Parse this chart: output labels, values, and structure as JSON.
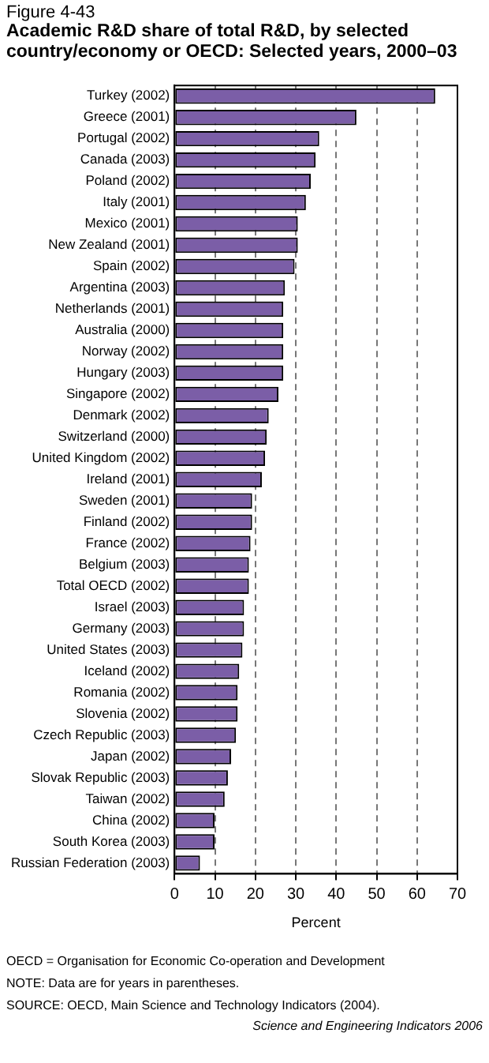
{
  "chart_data": {
    "type": "bar",
    "orientation": "horizontal",
    "subtitle": "Figure 4-43",
    "title": "Academic R&D share of total R&D, by selected country/economy or OECD: Selected years, 2000–03",
    "xlabel": "Percent",
    "categories": [
      "Turkey (2002)",
      "Greece (2001)",
      "Portugal (2002)",
      "Canada (2003)",
      "Poland (2002)",
      "Italy (2001)",
      "Mexico (2001)",
      "New Zealand (2001)",
      "Spain (2002)",
      "Argentina (2003)",
      "Netherlands (2001)",
      "Australia (2000)",
      "Norway (2002)",
      "Hungary (2003)",
      "Singapore (2002)",
      "Denmark (2002)",
      "Switzerland (2000)",
      "United Kingdom (2002)",
      "Ireland (2001)",
      "Sweden (2001)",
      "Finland (2002)",
      "France (2002)",
      "Belgium (2003)",
      "Total OECD (2002)",
      "Israel (2003)",
      "Germany (2003)",
      "United States (2003)",
      "Iceland (2002)",
      "Romania (2002)",
      "Slovenia (2002)",
      "Czech Republic (2003)",
      "Japan (2002)",
      "Slovak Republic (2003)",
      "Taiwan (2002)",
      "China (2002)",
      "South Korea (2003)",
      "Russian Federation (2003)"
    ],
    "values": [
      64.5,
      45.0,
      35.8,
      34.9,
      33.7,
      32.5,
      30.5,
      30.5,
      29.7,
      27.3,
      26.9,
      26.9,
      26.9,
      26.9,
      25.7,
      23.3,
      22.8,
      22.4,
      21.6,
      19.2,
      19.2,
      18.8,
      18.4,
      18.4,
      17.2,
      17.2,
      16.8,
      16.0,
      15.6,
      15.6,
      15.2,
      14.0,
      13.2,
      12.4,
      9.9,
      9.9,
      6.3
    ],
    "color": "#7b5ea7",
    "xlim": [
      0,
      70
    ],
    "xticks": [
      0,
      10,
      20,
      30,
      40,
      50,
      60,
      70
    ],
    "grid": "x",
    "legend": false,
    "annotations": [
      "OECD = Organisation for Economic Co-operation and Development",
      "NOTE: Data are for years in parentheses.",
      "SOURCE: OECD, Main Science and Technology Indicators (2004).",
      "Science and Engineering Indicators 2006"
    ]
  }
}
